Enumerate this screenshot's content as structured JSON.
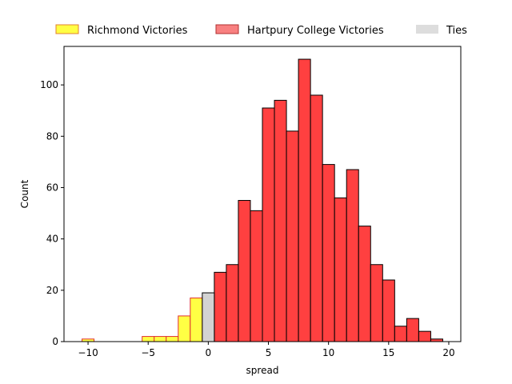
{
  "chart_data": {
    "type": "bar",
    "xlabel": "spread",
    "ylabel": "Count",
    "xlim": [
      -12,
      21
    ],
    "ylim": [
      0,
      115
    ],
    "xticks": [
      -10,
      -5,
      0,
      5,
      10,
      15,
      20
    ],
    "yticks": [
      0,
      20,
      40,
      60,
      80,
      100
    ],
    "bin_width": 1,
    "legend_position": "top",
    "colors": {
      "richmond_fill": "#ffff44",
      "richmond_edge": "#e03030",
      "hartpury_fill": "#ff4040",
      "hartpury_edge": "#000000",
      "ties_fill": "#d3d3d3",
      "ties_edge": "#000000"
    },
    "series": [
      {
        "name": "Richmond Victories",
        "bins": [
          {
            "x0": -10.5,
            "x1": -9.5,
            "value": 1
          },
          {
            "x0": -5.5,
            "x1": -4.5,
            "value": 2
          },
          {
            "x0": -4.5,
            "x1": -3.5,
            "value": 2
          },
          {
            "x0": -3.5,
            "x1": -2.5,
            "value": 2
          },
          {
            "x0": -2.5,
            "x1": -1.5,
            "value": 10
          },
          {
            "x0": -1.5,
            "x1": -0.5,
            "value": 17
          }
        ]
      },
      {
        "name": "Hartpury College Victories",
        "bins": [
          {
            "x0": 0.5,
            "x1": 1.5,
            "value": 27
          },
          {
            "x0": 1.5,
            "x1": 2.5,
            "value": 30
          },
          {
            "x0": 2.5,
            "x1": 3.5,
            "value": 55
          },
          {
            "x0": 3.5,
            "x1": 4.5,
            "value": 51
          },
          {
            "x0": 4.5,
            "x1": 5.5,
            "value": 91
          },
          {
            "x0": 5.5,
            "x1": 6.5,
            "value": 94
          },
          {
            "x0": 6.5,
            "x1": 7.5,
            "value": 82
          },
          {
            "x0": 7.5,
            "x1": 8.5,
            "value": 110
          },
          {
            "x0": 8.5,
            "x1": 9.5,
            "value": 96
          },
          {
            "x0": 9.5,
            "x1": 10.5,
            "value": 69
          },
          {
            "x0": 10.5,
            "x1": 11.5,
            "value": 56
          },
          {
            "x0": 11.5,
            "x1": 12.5,
            "value": 67
          },
          {
            "x0": 12.5,
            "x1": 13.5,
            "value": 45
          },
          {
            "x0": 13.5,
            "x1": 14.5,
            "value": 30
          },
          {
            "x0": 14.5,
            "x1": 15.5,
            "value": 24
          },
          {
            "x0": 15.5,
            "x1": 16.5,
            "value": 6
          },
          {
            "x0": 16.5,
            "x1": 17.5,
            "value": 9
          },
          {
            "x0": 17.5,
            "x1": 18.5,
            "value": 4
          },
          {
            "x0": 18.5,
            "x1": 19.5,
            "value": 1
          }
        ]
      },
      {
        "name": "Ties",
        "bins": [
          {
            "x0": -0.5,
            "x1": 0.5,
            "value": 19
          }
        ]
      }
    ],
    "legend": [
      {
        "label": "Richmond Victories",
        "series": 0
      },
      {
        "label": "Hartpury College Victories",
        "series": 1
      },
      {
        "label": "Ties",
        "series": 2
      }
    ]
  }
}
